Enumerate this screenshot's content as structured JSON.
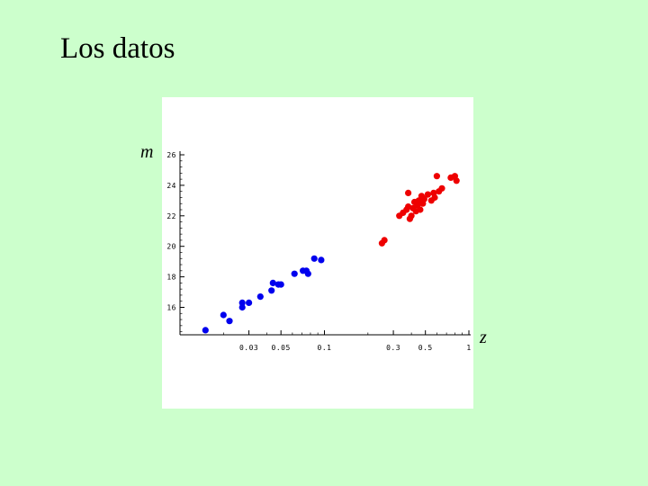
{
  "slide": {
    "title": "Los datos"
  },
  "chart_data": {
    "type": "scatter",
    "title": "",
    "xlabel": "z",
    "ylabel": "m",
    "xscale": "log",
    "xlim": [
      0.01,
      1.0
    ],
    "ylim": [
      14.2,
      26.0
    ],
    "xticks": [
      {
        "value": 0.03,
        "label": "0.03"
      },
      {
        "value": 0.05,
        "label": "0.05"
      },
      {
        "value": 0.1,
        "label": "0.1"
      },
      {
        "value": 0.3,
        "label": "0.3"
      },
      {
        "value": 0.5,
        "label": "0.5"
      },
      {
        "value": 1.0,
        "label": "1"
      }
    ],
    "yticks": [
      {
        "value": 16,
        "label": "16"
      },
      {
        "value": 18,
        "label": "18"
      },
      {
        "value": 20,
        "label": "20"
      },
      {
        "value": 22,
        "label": "22"
      },
      {
        "value": 24,
        "label": "24"
      },
      {
        "value": 26,
        "label": "26"
      }
    ],
    "grid": false,
    "series": [
      {
        "color": "#0000ee",
        "points": [
          [
            0.015,
            14.5
          ],
          [
            0.02,
            15.5
          ],
          [
            0.022,
            15.1
          ],
          [
            0.027,
            16.0
          ],
          [
            0.027,
            16.3
          ],
          [
            0.03,
            16.3
          ],
          [
            0.036,
            16.7
          ],
          [
            0.043,
            17.1
          ],
          [
            0.044,
            17.6
          ],
          [
            0.048,
            17.5
          ],
          [
            0.05,
            17.5
          ],
          [
            0.062,
            18.2
          ],
          [
            0.071,
            18.4
          ],
          [
            0.075,
            18.4
          ],
          [
            0.077,
            18.2
          ],
          [
            0.085,
            19.2
          ],
          [
            0.095,
            19.1
          ]
        ]
      },
      {
        "color": "#ee0000",
        "points": [
          [
            0.25,
            20.2
          ],
          [
            0.26,
            20.4
          ],
          [
            0.33,
            22.0
          ],
          [
            0.35,
            22.2
          ],
          [
            0.37,
            22.4
          ],
          [
            0.38,
            22.6
          ],
          [
            0.39,
            21.8
          ],
          [
            0.38,
            23.5
          ],
          [
            0.4,
            22.0
          ],
          [
            0.41,
            22.5
          ],
          [
            0.42,
            22.9
          ],
          [
            0.43,
            22.3
          ],
          [
            0.44,
            22.7
          ],
          [
            0.45,
            23.0
          ],
          [
            0.46,
            22.4
          ],
          [
            0.47,
            23.3
          ],
          [
            0.48,
            22.8
          ],
          [
            0.49,
            23.1
          ],
          [
            0.52,
            23.4
          ],
          [
            0.55,
            23.0
          ],
          [
            0.57,
            23.5
          ],
          [
            0.58,
            23.2
          ],
          [
            0.6,
            24.6
          ],
          [
            0.62,
            23.6
          ],
          [
            0.65,
            23.8
          ],
          [
            0.75,
            24.5
          ],
          [
            0.8,
            24.6
          ],
          [
            0.82,
            24.3
          ]
        ]
      }
    ]
  }
}
